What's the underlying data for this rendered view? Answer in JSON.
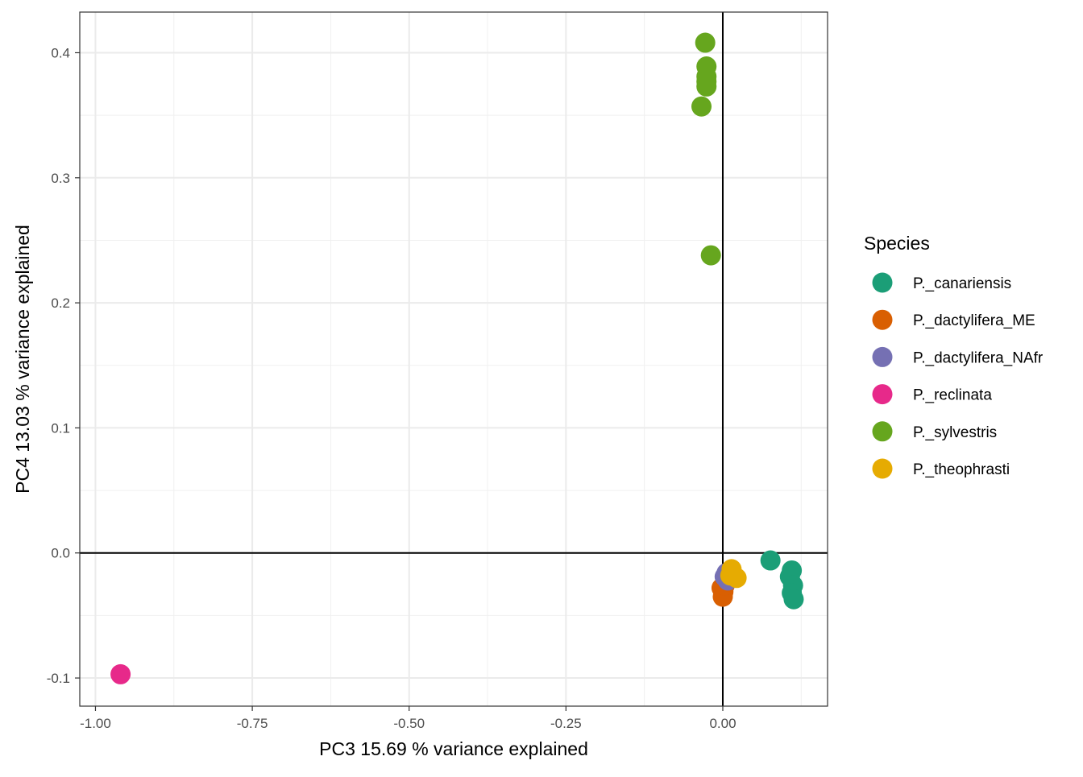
{
  "chart_data": {
    "type": "scatter",
    "title": "",
    "xlabel": "PC3 15.69 % variance explained",
    "ylabel": "PC4 13.03 % variance explained",
    "xlim": [
      -1.025,
      0.167
    ],
    "ylim": [
      -0.1225,
      0.4325
    ],
    "x_ticks": [
      -1.0,
      -0.75,
      -0.5,
      -0.25,
      0.0
    ],
    "x_tick_labels": [
      "-1.00",
      "-0.75",
      "-0.50",
      "-0.25",
      "0.00"
    ],
    "y_ticks": [
      -0.1,
      0.0,
      0.1,
      0.2,
      0.3,
      0.4
    ],
    "y_tick_labels": [
      "-0.1",
      "0.0",
      "0.1",
      "0.2",
      "0.3",
      "0.4"
    ],
    "grid": true,
    "reference_lines": {
      "x": 0,
      "y": 0
    },
    "legend": {
      "title": "Species",
      "position": "right"
    },
    "series": [
      {
        "name": "P._canariensis",
        "color": "#1B9E77",
        "points": [
          {
            "x": 0.076,
            "y": -0.006
          },
          {
            "x": 0.11,
            "y": -0.014
          },
          {
            "x": 0.107,
            "y": -0.019
          },
          {
            "x": 0.112,
            "y": -0.026
          },
          {
            "x": 0.11,
            "y": -0.032
          },
          {
            "x": 0.113,
            "y": -0.037
          }
        ]
      },
      {
        "name": "P._dactylifera_ME",
        "color": "#D95F02",
        "points": [
          {
            "x": -0.002,
            "y": -0.028
          },
          {
            "x": 0.001,
            "y": -0.031
          },
          {
            "x": 0.0,
            "y": -0.035
          },
          {
            "x": 0.003,
            "y": -0.026
          }
        ]
      },
      {
        "name": "P._dactylifera_NAfr",
        "color": "#7570B3",
        "points": [
          {
            "x": 0.006,
            "y": -0.016
          },
          {
            "x": 0.008,
            "y": -0.022
          },
          {
            "x": 0.003,
            "y": -0.019
          }
        ]
      },
      {
        "name": "P._reclinata",
        "color": "#E7298A",
        "points": [
          {
            "x": -0.96,
            "y": -0.097
          }
        ]
      },
      {
        "name": "P._sylvestris",
        "color": "#66A61E",
        "points": [
          {
            "x": -0.028,
            "y": 0.408
          },
          {
            "x": -0.026,
            "y": 0.389
          },
          {
            "x": -0.026,
            "y": 0.381
          },
          {
            "x": -0.026,
            "y": 0.377
          },
          {
            "x": -0.026,
            "y": 0.373
          },
          {
            "x": -0.034,
            "y": 0.357
          },
          {
            "x": -0.019,
            "y": 0.238
          }
        ]
      },
      {
        "name": "P._theophrasti",
        "color": "#E6AB02",
        "points": [
          {
            "x": 0.014,
            "y": -0.013
          },
          {
            "x": 0.022,
            "y": -0.02
          },
          {
            "x": 0.012,
            "y": -0.018
          }
        ]
      }
    ]
  }
}
